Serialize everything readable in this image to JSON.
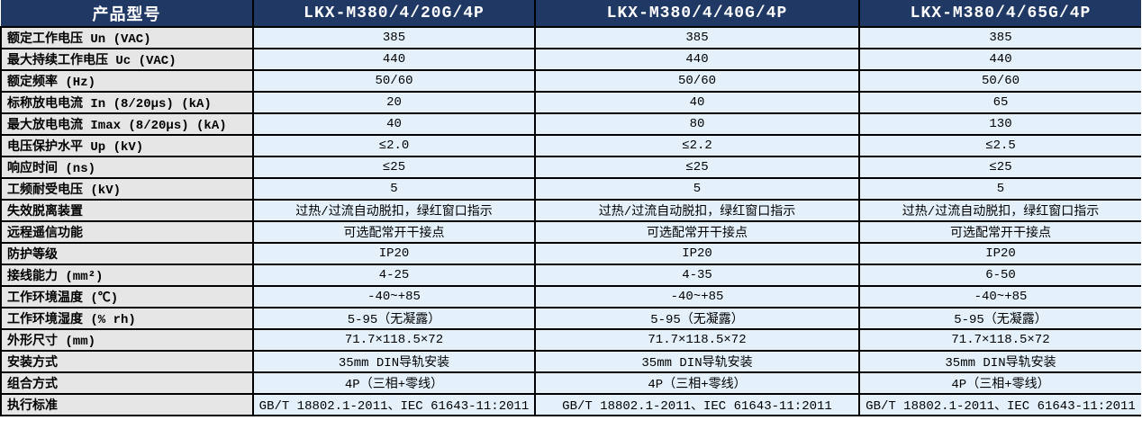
{
  "theme": {
    "header_bg": "#1F3864",
    "header_text": "#FFFFFF",
    "label_bg": "#E7E6E6",
    "value_bg": "#E4F1FB",
    "border": "#000000",
    "text": "#000000"
  },
  "table": {
    "header": {
      "label_col": "产品型号",
      "models": [
        "LKX-M380/4/20G/4P",
        "LKX-M380/4/40G/4P",
        "LKX-M380/4/65G/4P"
      ]
    },
    "rows": [
      {
        "label": "额定工作电压 Un (VAC)",
        "values": [
          "385",
          "385",
          "385"
        ]
      },
      {
        "label": "最大持续工作电压 Uc (VAC)",
        "values": [
          "440",
          "440",
          "440"
        ]
      },
      {
        "label": "额定频率 (Hz)",
        "values": [
          "50/60",
          "50/60",
          "50/60"
        ]
      },
      {
        "label": "标称放电电流 In (8/20μs) (kA)",
        "values": [
          "20",
          "40",
          "65"
        ]
      },
      {
        "label": "最大放电电流 Imax (8/20μs) (kA)",
        "values": [
          "40",
          "80",
          "130"
        ]
      },
      {
        "label": "电压保护水平 Up (kV)",
        "values": [
          "≤2.0",
          "≤2.2",
          "≤2.5"
        ]
      },
      {
        "label": "响应时间 (ns)",
        "values": [
          "≤25",
          "≤25",
          "≤25"
        ]
      },
      {
        "label": "工频耐受电压 (kV)",
        "values": [
          "5",
          "5",
          "5"
        ]
      },
      {
        "label": "失效脱离装置",
        "values": [
          "过热/过流自动脱扣，绿红窗口指示",
          "过热/过流自动脱扣，绿红窗口指示",
          "过热/过流自动脱扣，绿红窗口指示"
        ]
      },
      {
        "label": "远程遥信功能",
        "values": [
          "可选配常开干接点",
          "可选配常开干接点",
          "可选配常开干接点"
        ]
      },
      {
        "label": "防护等级",
        "values": [
          "IP20",
          "IP20",
          "IP20"
        ]
      },
      {
        "label": "接线能力 (mm²)",
        "values": [
          "4-25",
          "4-35",
          "6-50"
        ]
      },
      {
        "label": "工作环境温度 (℃)",
        "values": [
          "-40~+85",
          "-40~+85",
          "-40~+85"
        ]
      },
      {
        "label": "工作环境湿度 (% rh)",
        "values": [
          "5-95（无凝露）",
          "5-95（无凝露）",
          "5-95（无凝露）"
        ]
      },
      {
        "label": "外形尺寸 (mm)",
        "values": [
          "71.7×118.5×72",
          "71.7×118.5×72",
          "71.7×118.5×72"
        ]
      },
      {
        "label": "安装方式",
        "values": [
          "35mm DIN导轨安装",
          "35mm DIN导轨安装",
          "35mm DIN导轨安装"
        ]
      },
      {
        "label": "组合方式",
        "values": [
          "4P（三相+零线）",
          "4P（三相+零线）",
          "4P（三相+零线）"
        ]
      },
      {
        "label": "执行标准",
        "values": [
          "GB/T 18802.1-2011、IEC 61643-11:2011",
          "GB/T 18802.1-2011、IEC 61643-11:2011",
          "GB/T 18802.1-2011、IEC 61643-11:2011"
        ]
      }
    ]
  }
}
